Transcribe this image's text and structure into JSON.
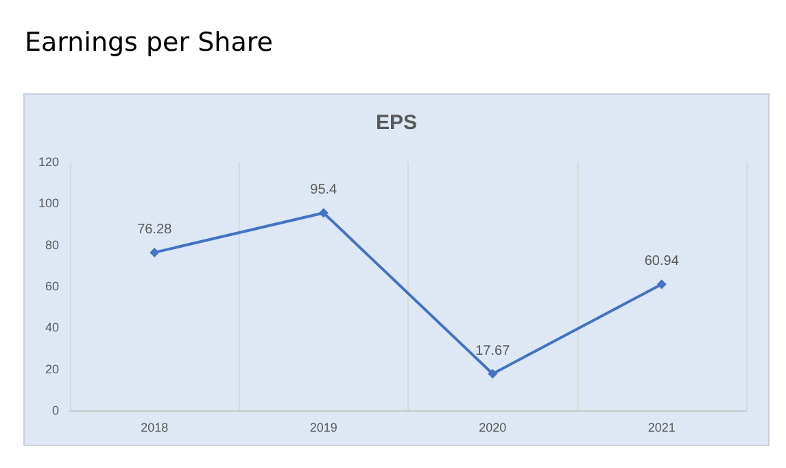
{
  "chart_data": {
    "type": "line",
    "title": "Earnings per Share",
    "subtitle": "EPS",
    "categories": [
      "2018",
      "2019",
      "2020",
      "2021"
    ],
    "series": [
      {
        "color": "#4472c4",
        "values": [
          76.28,
          95.4,
          17.67,
          60.94
        ]
      }
    ],
    "ylim": [
      0,
      120
    ],
    "yticks": [
      0,
      20,
      40,
      60,
      80,
      100,
      120
    ],
    "grid": "x",
    "marker": "diamond",
    "line_style": "solid",
    "data_labels": true
  }
}
